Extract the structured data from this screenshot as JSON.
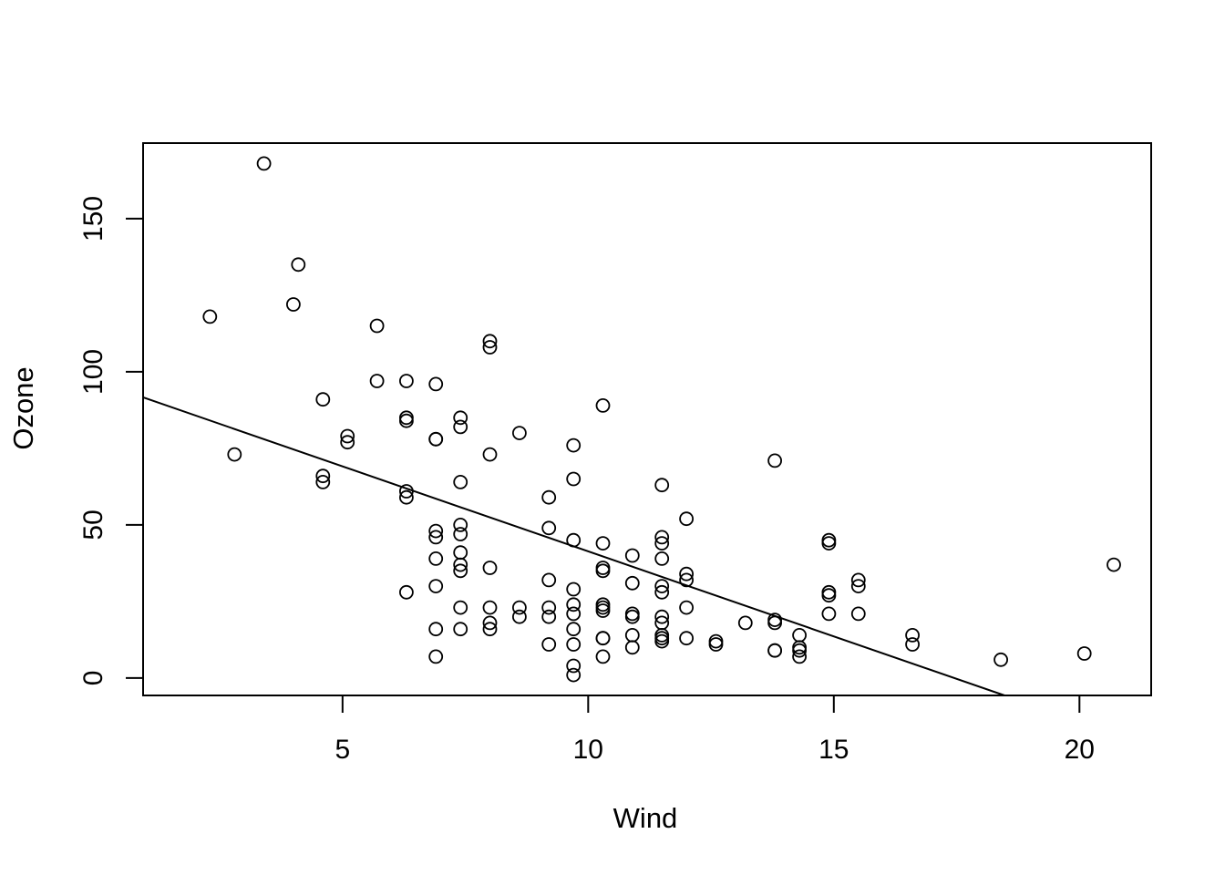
{
  "chart_data": {
    "type": "scatter",
    "title": "",
    "xlabel": "Wind",
    "ylabel": "Ozone",
    "x_ticks": [
      5,
      10,
      15,
      20
    ],
    "y_ticks": [
      0,
      50,
      100,
      150
    ],
    "xlim": [
      0.94,
      21.46
    ],
    "ylim": [
      -5.68,
      174.68
    ],
    "grid": false,
    "legend": null,
    "background_color": "#ffffff",
    "point_color": "#000000",
    "line_color": "#000000",
    "marker": "open-circle",
    "points": [
      [
        7.4,
        41
      ],
      [
        8,
        36
      ],
      [
        12.6,
        12
      ],
      [
        11.5,
        18
      ],
      [
        14.9,
        28
      ],
      [
        8.6,
        23
      ],
      [
        13.8,
        19
      ],
      [
        20.1,
        8
      ],
      [
        6.9,
        7
      ],
      [
        9.7,
        16
      ],
      [
        9.2,
        11
      ],
      [
        10.9,
        14
      ],
      [
        13.2,
        18
      ],
      [
        11.5,
        14
      ],
      [
        12,
        34
      ],
      [
        18.4,
        6
      ],
      [
        11.5,
        30
      ],
      [
        9.7,
        11
      ],
      [
        9.7,
        1
      ],
      [
        16.6,
        11
      ],
      [
        9.7,
        4
      ],
      [
        12,
        32
      ],
      [
        12,
        23
      ],
      [
        14.9,
        45
      ],
      [
        5.7,
        115
      ],
      [
        7.4,
        37
      ],
      [
        9.7,
        29
      ],
      [
        13.8,
        71
      ],
      [
        11.5,
        39
      ],
      [
        8,
        23
      ],
      [
        14.9,
        21
      ],
      [
        20.7,
        37
      ],
      [
        9.2,
        20
      ],
      [
        11.5,
        12
      ],
      [
        10.3,
        13
      ],
      [
        4.1,
        135
      ],
      [
        9.2,
        49
      ],
      [
        9.2,
        32
      ],
      [
        4.6,
        64
      ],
      [
        10.9,
        40
      ],
      [
        5.1,
        77
      ],
      [
        6.3,
        97
      ],
      [
        5.7,
        97
      ],
      [
        7.4,
        85
      ],
      [
        14.3,
        10
      ],
      [
        14.9,
        27
      ],
      [
        14.3,
        7
      ],
      [
        6.9,
        48
      ],
      [
        10.3,
        35
      ],
      [
        6.3,
        61
      ],
      [
        5.1,
        79
      ],
      [
        11.5,
        63
      ],
      [
        6.9,
        16
      ],
      [
        8.6,
        80
      ],
      [
        8,
        108
      ],
      [
        8.6,
        20
      ],
      [
        12,
        52
      ],
      [
        7.4,
        82
      ],
      [
        7.4,
        50
      ],
      [
        7.4,
        64
      ],
      [
        9.2,
        59
      ],
      [
        6.9,
        39
      ],
      [
        13.8,
        9
      ],
      [
        7.4,
        16
      ],
      [
        6.9,
        78
      ],
      [
        7.4,
        35
      ],
      [
        4.6,
        66
      ],
      [
        4,
        122
      ],
      [
        10.3,
        89
      ],
      [
        8,
        110
      ],
      [
        11.5,
        44
      ],
      [
        11.5,
        28
      ],
      [
        9.7,
        65
      ],
      [
        10.3,
        22
      ],
      [
        6.3,
        59
      ],
      [
        7.4,
        23
      ],
      [
        10.9,
        31
      ],
      [
        10.3,
        44
      ],
      [
        15.5,
        21
      ],
      [
        14.3,
        9
      ],
      [
        9.7,
        45
      ],
      [
        3.4,
        168
      ],
      [
        8,
        73
      ],
      [
        9.7,
        76
      ],
      [
        2.3,
        118
      ],
      [
        6.3,
        84
      ],
      [
        6.3,
        85
      ],
      [
        6.9,
        96
      ],
      [
        6.9,
        78
      ],
      [
        2.8,
        73
      ],
      [
        7.4,
        47
      ],
      [
        15.5,
        32
      ],
      [
        10.9,
        20
      ],
      [
        10.3,
        23
      ],
      [
        10.9,
        21
      ],
      [
        9.7,
        24
      ],
      [
        14.9,
        44
      ],
      [
        9.7,
        21
      ],
      [
        6.3,
        28
      ],
      [
        13.8,
        9
      ],
      [
        11.5,
        13
      ],
      [
        11.5,
        46
      ],
      [
        13.8,
        18
      ],
      [
        10.3,
        13
      ],
      [
        10.3,
        24
      ],
      [
        8,
        16
      ],
      [
        12,
        13
      ],
      [
        9.2,
        23
      ],
      [
        10.3,
        36
      ],
      [
        10.3,
        7
      ],
      [
        16.6,
        14
      ],
      [
        15.5,
        30
      ],
      [
        14.3,
        14
      ],
      [
        8,
        18
      ],
      [
        11.5,
        20
      ],
      [
        6.9,
        30
      ],
      [
        10.9,
        10
      ],
      [
        12.6,
        11
      ],
      [
        6.9,
        46
      ],
      [
        4.6,
        91
      ]
    ],
    "regression_line": {
      "slope": -5.5509,
      "intercept": 96.8729
    }
  }
}
